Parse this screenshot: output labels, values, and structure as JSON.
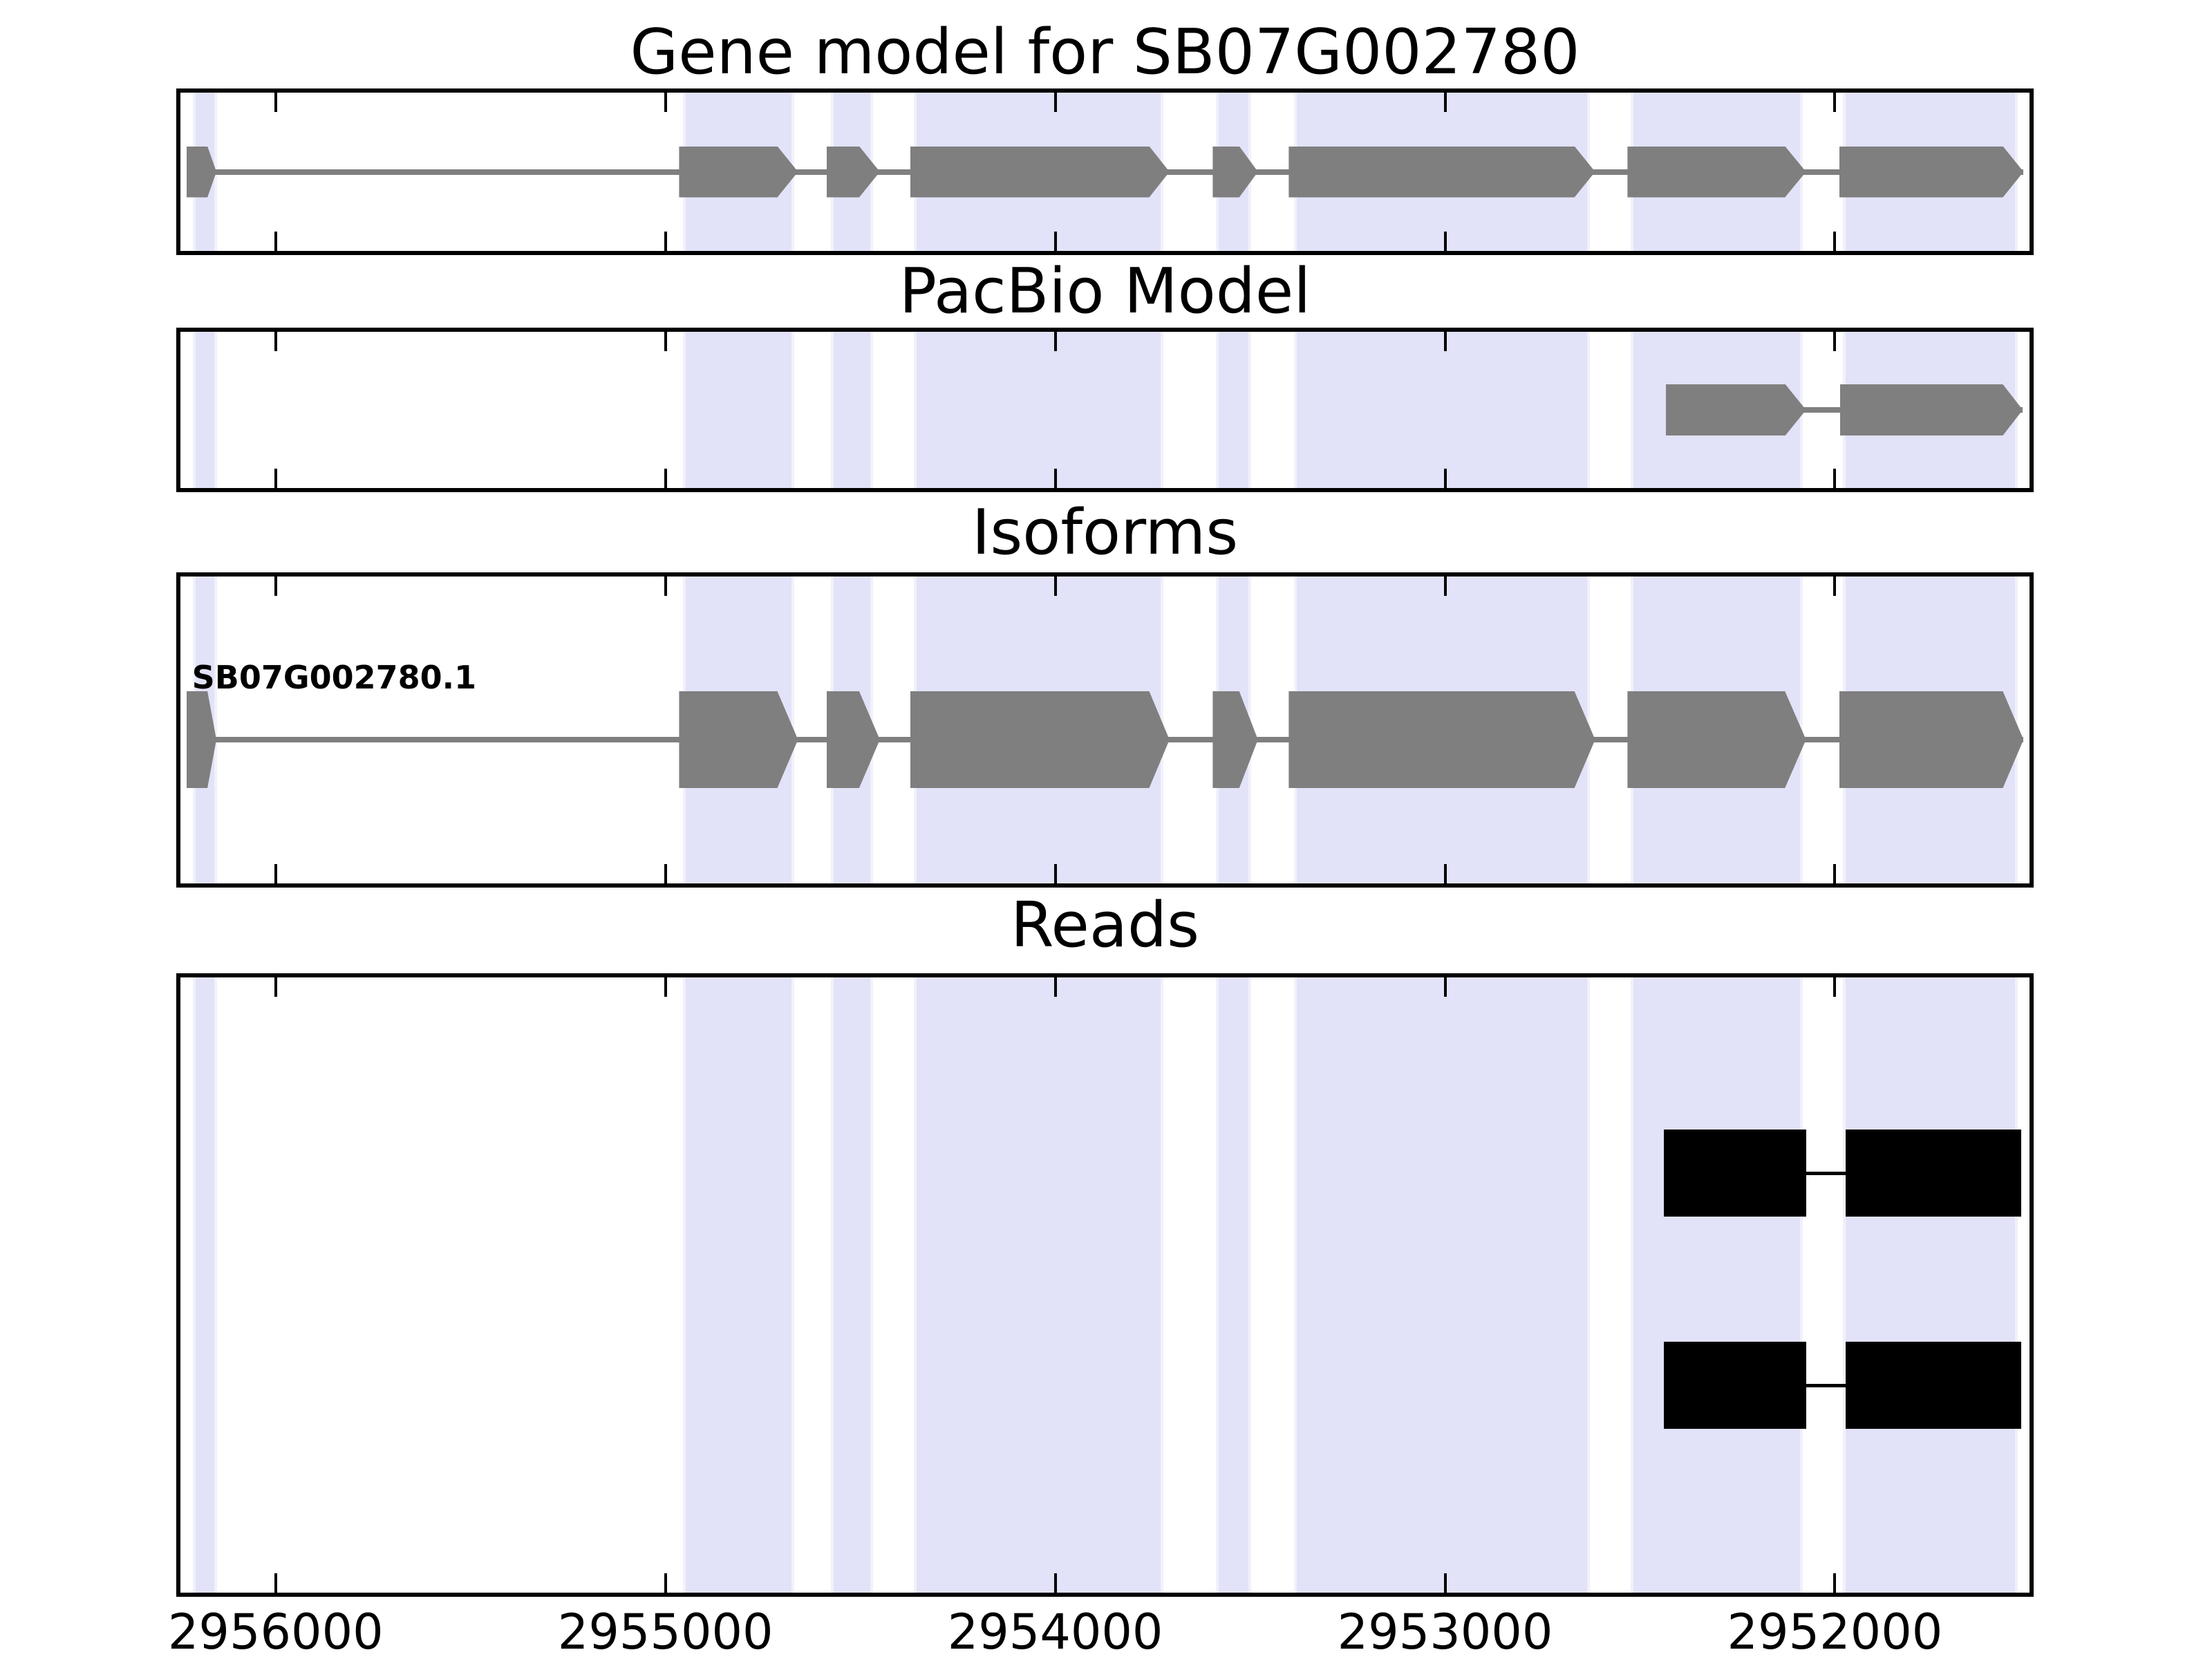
{
  "figure": {
    "colors": {
      "background": "#ffffff",
      "highlight_fill": "#e2e2f8",
      "highlight_edge": "#f1f1fb",
      "exon_gray": "#7f7f7f",
      "read_black": "#000000",
      "border_black": "#000000"
    }
  },
  "chart_data": {
    "type": "gene-model-tracks",
    "x_axis": {
      "xlim": [
        2956255,
        2951490
      ],
      "inverted": true,
      "ticks": [
        {
          "value": 2956000,
          "label": "2956000"
        },
        {
          "value": 2955000,
          "label": "2955000"
        },
        {
          "value": 2954000,
          "label": "2954000"
        },
        {
          "value": 2953000,
          "label": "2953000"
        },
        {
          "value": 2952000,
          "label": "2952000"
        }
      ]
    },
    "highlight_regions": [
      {
        "start": 2956213,
        "end": 2956151
      },
      {
        "start": 2954956,
        "end": 2954670
      },
      {
        "start": 2954576,
        "end": 2954468
      },
      {
        "start": 2954362,
        "end": 2953723
      },
      {
        "start": 2953587,
        "end": 2953498
      },
      {
        "start": 2953388,
        "end": 2952629
      },
      {
        "start": 2952523,
        "end": 2952083
      },
      {
        "start": 2951979,
        "end": 2951530
      }
    ],
    "panels": [
      {
        "title": "Gene model for SB07G002780",
        "kind": "transcript",
        "line": {
          "start": 2956229,
          "end": 2951516
        },
        "exons": [
          {
            "start": 2956229,
            "tip": 2956175,
            "end": 2956152
          },
          {
            "start": 2954965,
            "tip": 2954713,
            "end": 2954660
          },
          {
            "start": 2954587,
            "tip": 2954503,
            "end": 2954450
          },
          {
            "start": 2954372,
            "tip": 2953759,
            "end": 2953707
          },
          {
            "start": 2953596,
            "tip": 2953528,
            "end": 2953480
          },
          {
            "start": 2953401,
            "tip": 2952668,
            "end": 2952615
          },
          {
            "start": 2952532,
            "tip": 2952128,
            "end": 2952074
          },
          {
            "start": 2951989,
            "tip": 2951569,
            "end": 2951516
          }
        ]
      },
      {
        "title": "PacBio Model",
        "kind": "transcript",
        "line": {
          "start": 2952434,
          "end": 2951518
        },
        "exons": [
          {
            "start": 2952434,
            "tip": 2952127,
            "end": 2952074
          },
          {
            "start": 2951987,
            "tip": 2951569,
            "end": 2951518
          }
        ]
      },
      {
        "title": "Isoforms",
        "kind": "isoforms",
        "transcripts": [
          {
            "label": "SB07G002780.1",
            "line": {
              "start": 2956229,
              "end": 2951516
            },
            "exons": [
              {
                "start": 2956229,
                "tip": 2956175,
                "end": 2956152
              },
              {
                "start": 2954965,
                "tip": 2954713,
                "end": 2954660
              },
              {
                "start": 2954587,
                "tip": 2954503,
                "end": 2954450
              },
              {
                "start": 2954372,
                "tip": 2953759,
                "end": 2953707
              },
              {
                "start": 2953596,
                "tip": 2953528,
                "end": 2953480
              },
              {
                "start": 2953401,
                "tip": 2952668,
                "end": 2952615
              },
              {
                "start": 2952532,
                "tip": 2952128,
                "end": 2952074
              },
              {
                "start": 2951989,
                "tip": 2951569,
                "end": 2951516
              }
            ]
          }
        ]
      },
      {
        "title": "Reads",
        "kind": "reads",
        "reads": [
          {
            "row": 0.3205,
            "line": {
              "start": 2952438,
              "end": 2951522
            },
            "segments": [
              {
                "start": 2952438,
                "end": 2952073
              },
              {
                "start": 2951973,
                "end": 2951522
              }
            ]
          },
          {
            "row": 0.661,
            "line": {
              "start": 2952438,
              "end": 2951522
            },
            "segments": [
              {
                "start": 2952438,
                "end": 2952073
              },
              {
                "start": 2951973,
                "end": 2951522
              }
            ]
          }
        ]
      }
    ]
  }
}
